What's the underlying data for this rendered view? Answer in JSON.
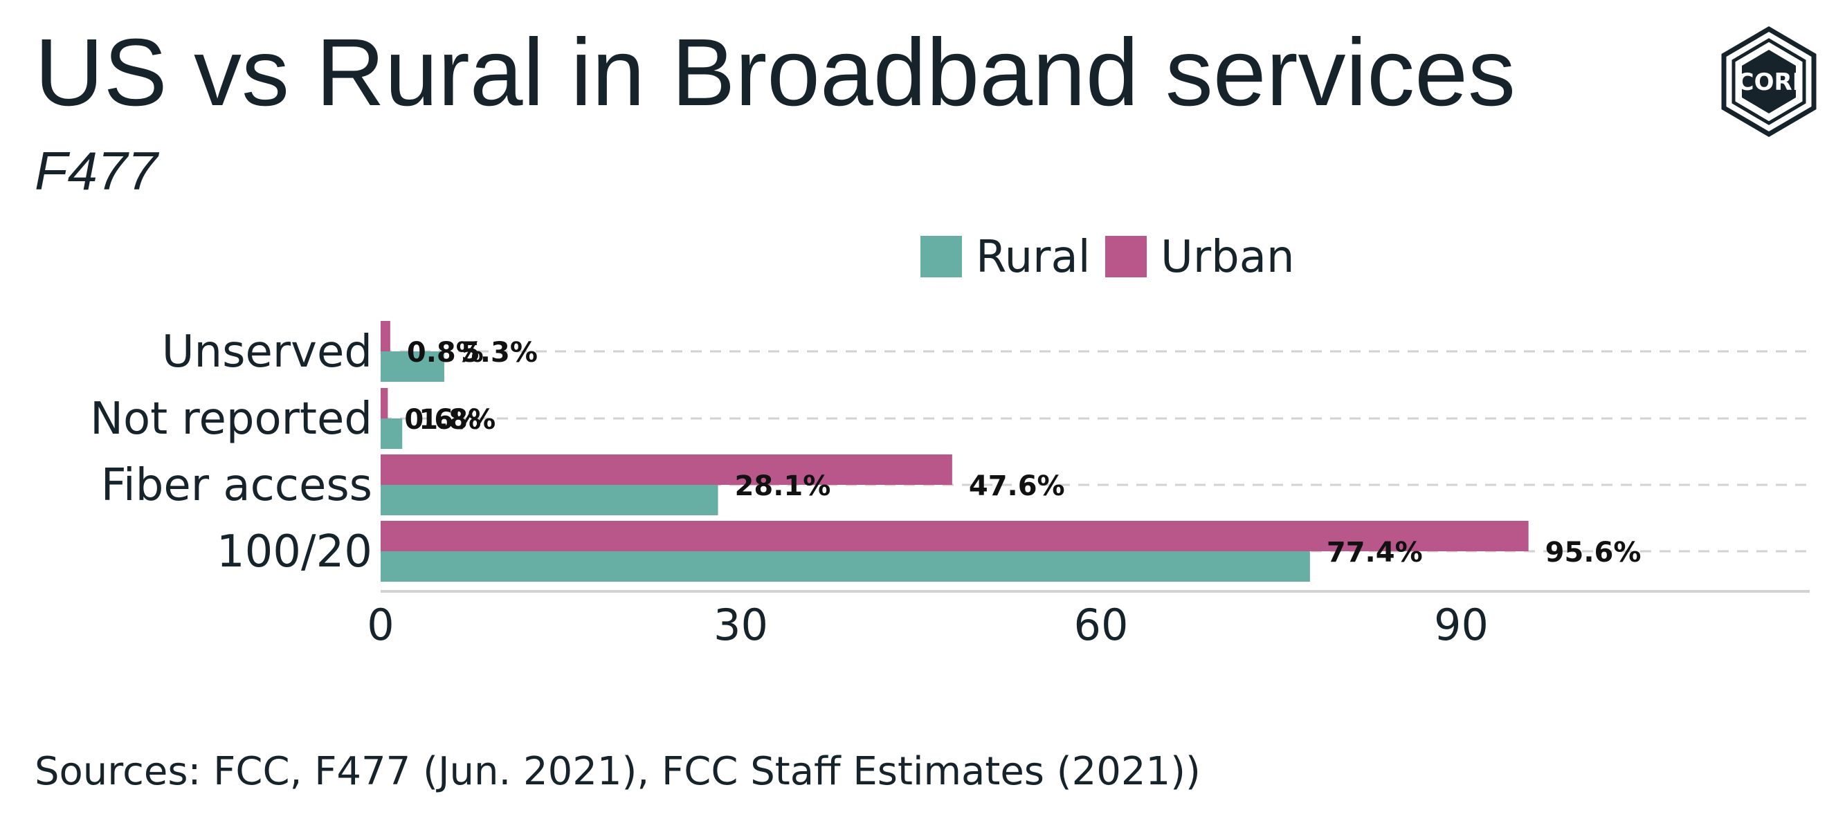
{
  "title": "US vs Rural in Broadband services",
  "subtitle": "F477",
  "source": "Sources: FCC, F477 (Jun. 2021), FCC Staff Estimates (2021))",
  "logo": {
    "text": "CORI",
    "icon": "cori-hexagon-logo"
  },
  "colors": {
    "rural": "#67aea5",
    "urban": "#b9578b",
    "text": "#16232a",
    "grid": "#d2d2d2"
  },
  "chart_data": {
    "type": "bar",
    "orientation": "horizontal",
    "categories": [
      "Unserved",
      "Not reported",
      "Fiber access",
      "100/20"
    ],
    "series": [
      {
        "name": "Rural",
        "values": [
          5.3,
          1.8,
          28.1,
          77.4
        ]
      },
      {
        "name": "Urban",
        "values": [
          0.8,
          0.6,
          47.6,
          95.6
        ]
      }
    ],
    "data_labels": {
      "Rural": [
        "5.3%",
        "1.8%",
        "28.1%",
        "77.4%"
      ],
      "Urban": [
        "0.8%",
        "0.6%",
        "47.6%",
        "95.6%"
      ]
    },
    "x_ticks": [
      "0",
      "30",
      "60",
      "90"
    ],
    "xlim": [
      0,
      119
    ],
    "xlabel": "",
    "ylabel": "",
    "grid": "dashed horizontal",
    "legend": {
      "position": "top",
      "entries": [
        "Rural",
        "Urban"
      ]
    }
  }
}
